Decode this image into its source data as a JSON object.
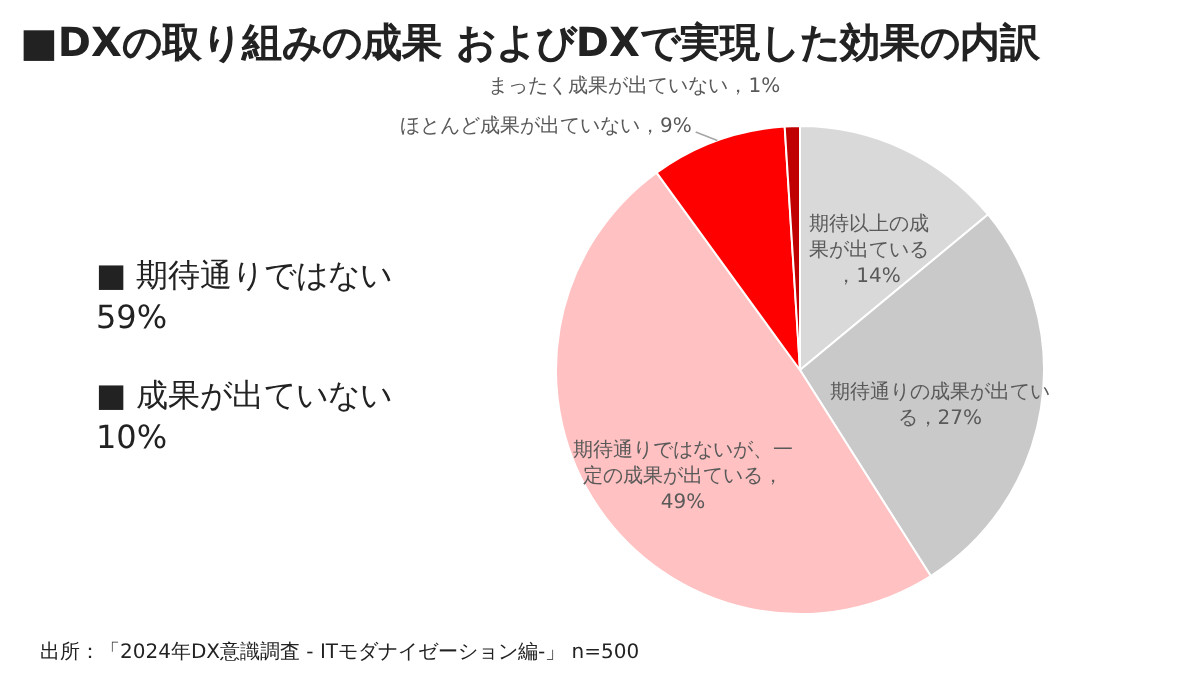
{
  "chart_data": {
    "type": "pie",
    "title": "■DXの取り組みの成果 およびDXで実現した効果の内訳",
    "categories": [
      "期待以上の成果が出ている，14%",
      "期待通りの成果が出ている，27%",
      "期待通りではないが、一定の成果が出ている，49%",
      "ほとんど成果が出ていない，9%",
      "まったく成果が出ていない，1%"
    ],
    "values": [
      14,
      27,
      49,
      9,
      1
    ],
    "colors": [
      "#d9d9d9",
      "#c9c9c9",
      "#ffc1c1",
      "#ff0000",
      "#c00000"
    ],
    "annotations": [
      "■  期待通りではない\n    59%",
      "■  成果が出ていない\n    10%",
      "出所：「2024年DX意識調査 - ITモダナイゼーション編-」 n=500"
    ]
  }
}
